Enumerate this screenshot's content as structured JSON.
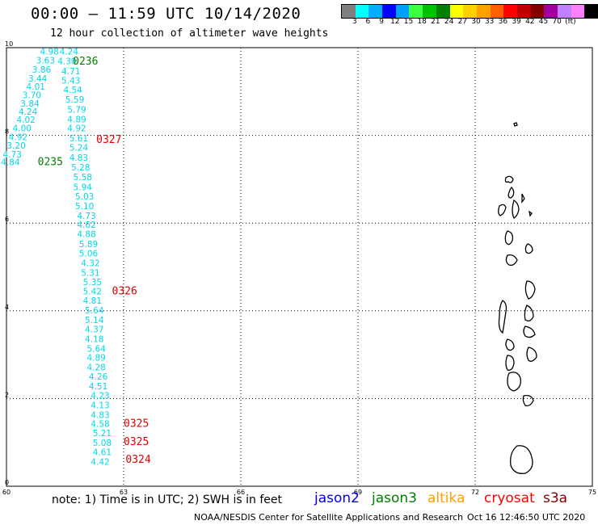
{
  "header": {
    "title": "00:00 – 11:59 UTC 10/14/2020",
    "subtitle": "12 hour collection of altimeter wave heights"
  },
  "colorbar": {
    "colors": [
      "#7f7f7f",
      "#00ffff",
      "#00b0ff",
      "#0000ff",
      "#00a0ff",
      "#40ff40",
      "#00c000",
      "#008000",
      "#ffff00",
      "#ffd000",
      "#ffa000",
      "#ff6000",
      "#ff0000",
      "#c00000",
      "#800000",
      "#a000a0",
      "#c080ff",
      "#ff80ff",
      "#000000"
    ],
    "labels": [
      "3",
      "6",
      "9",
      "12",
      "15",
      "18",
      "21",
      "24",
      "27",
      "30",
      "33",
      "36",
      "39",
      "42",
      "45",
      "70",
      "(ft)"
    ]
  },
  "map": {
    "lon_ticks": [
      "60",
      "63",
      "66",
      "69",
      "72",
      "75"
    ],
    "lat_ticks": [
      "0",
      "2",
      "4",
      "6",
      "8",
      "10"
    ],
    "lon_range": [
      60,
      75
    ],
    "lat_range": [
      0,
      10
    ],
    "grid": "dotted"
  },
  "observations": [
    {
      "v": "4.98",
      "lon": 61.1,
      "lat": 9.84,
      "c": "cyan"
    },
    {
      "v": "4.24",
      "lon": 61.6,
      "lat": 9.84,
      "c": "cyan"
    },
    {
      "v": "3.63",
      "lon": 61.0,
      "lat": 9.64,
      "c": "cyan"
    },
    {
      "v": "4.30",
      "lon": 61.55,
      "lat": 9.62,
      "c": "cyan"
    },
    {
      "v": "3.86",
      "lon": 60.9,
      "lat": 9.43,
      "c": "cyan"
    },
    {
      "v": "4.71",
      "lon": 61.65,
      "lat": 9.39,
      "c": "cyan"
    },
    {
      "v": "3.44",
      "lon": 60.8,
      "lat": 9.23,
      "c": "cyan"
    },
    {
      "v": "5.43",
      "lon": 61.65,
      "lat": 9.18,
      "c": "cyan"
    },
    {
      "v": "4.01",
      "lon": 60.75,
      "lat": 9.04,
      "c": "cyan"
    },
    {
      "v": "3.70",
      "lon": 60.65,
      "lat": 8.85,
      "c": "cyan"
    },
    {
      "v": "4.54",
      "lon": 61.7,
      "lat": 8.97,
      "c": "cyan"
    },
    {
      "v": "3.84",
      "lon": 60.6,
      "lat": 8.66,
      "c": "cyan"
    },
    {
      "v": "5.59",
      "lon": 61.75,
      "lat": 8.75,
      "c": "cyan"
    },
    {
      "v": "4.24",
      "lon": 60.55,
      "lat": 8.47,
      "c": "cyan"
    },
    {
      "v": "5.79",
      "lon": 61.8,
      "lat": 8.52,
      "c": "cyan"
    },
    {
      "v": "4.02",
      "lon": 60.5,
      "lat": 8.29,
      "c": "cyan"
    },
    {
      "v": "4.89",
      "lon": 61.8,
      "lat": 8.3,
      "c": "cyan"
    },
    {
      "v": "4.00",
      "lon": 60.4,
      "lat": 8.09,
      "c": "cyan"
    },
    {
      "v": "4.92",
      "lon": 61.8,
      "lat": 8.09,
      "c": "cyan"
    },
    {
      "v": "4.92",
      "lon": 60.3,
      "lat": 7.89,
      "c": "cyan"
    },
    {
      "v": "5.61",
      "lon": 61.85,
      "lat": 7.86,
      "c": "cyan"
    },
    {
      "v": "3.20",
      "lon": 60.25,
      "lat": 7.7,
      "c": "cyan"
    },
    {
      "v": "5.24",
      "lon": 61.85,
      "lat": 7.65,
      "c": "cyan"
    },
    {
      "v": "4.73",
      "lon": 60.15,
      "lat": 7.5,
      "c": "cyan"
    },
    {
      "v": "4.83",
      "lon": 61.85,
      "lat": 7.42,
      "c": "cyan"
    },
    {
      "v": "4.84",
      "lon": 60.1,
      "lat": 7.32,
      "c": "cyan"
    },
    {
      "v": "5.28",
      "lon": 61.9,
      "lat": 7.2,
      "c": "cyan"
    },
    {
      "v": "5.58",
      "lon": 61.95,
      "lat": 6.98,
      "c": "cyan"
    },
    {
      "v": "5.94",
      "lon": 61.95,
      "lat": 6.75,
      "c": "cyan"
    },
    {
      "v": "5.03",
      "lon": 62.0,
      "lat": 6.54,
      "c": "cyan"
    },
    {
      "v": "5.10",
      "lon": 62.0,
      "lat": 6.32,
      "c": "cyan"
    },
    {
      "v": "4.73",
      "lon": 62.05,
      "lat": 6.1,
      "c": "cyan"
    },
    {
      "v": "4.62",
      "lon": 62.05,
      "lat": 5.89,
      "c": "cyan"
    },
    {
      "v": "4.88",
      "lon": 62.05,
      "lat": 5.68,
      "c": "cyan"
    },
    {
      "v": "5.89",
      "lon": 62.1,
      "lat": 5.45,
      "c": "cyan"
    },
    {
      "v": "5.06",
      "lon": 62.1,
      "lat": 5.24,
      "c": "cyan"
    },
    {
      "v": "4.32",
      "lon": 62.15,
      "lat": 5.02,
      "c": "cyan"
    },
    {
      "v": "5.31",
      "lon": 62.15,
      "lat": 4.8,
      "c": "cyan"
    },
    {
      "v": "5.35",
      "lon": 62.2,
      "lat": 4.59,
      "c": "cyan"
    },
    {
      "v": "5.42",
      "lon": 62.2,
      "lat": 4.37,
      "c": "cyan"
    },
    {
      "v": "4.81",
      "lon": 62.2,
      "lat": 4.16,
      "c": "cyan"
    },
    {
      "v": "5.64",
      "lon": 62.25,
      "lat": 3.94,
      "c": "cyan"
    },
    {
      "v": "5.14",
      "lon": 62.25,
      "lat": 3.72,
      "c": "cyan"
    },
    {
      "v": "4.37",
      "lon": 62.25,
      "lat": 3.51,
      "c": "cyan"
    },
    {
      "v": "4.18",
      "lon": 62.25,
      "lat": 3.29,
      "c": "cyan"
    },
    {
      "v": "5.64",
      "lon": 62.3,
      "lat": 3.07,
      "c": "cyan"
    },
    {
      "v": "4.89",
      "lon": 62.3,
      "lat": 2.86,
      "c": "cyan"
    },
    {
      "v": "4.28",
      "lon": 62.3,
      "lat": 2.64,
      "c": "cyan"
    },
    {
      "v": "4.26",
      "lon": 62.35,
      "lat": 2.43,
      "c": "cyan"
    },
    {
      "v": "4.51",
      "lon": 62.35,
      "lat": 2.21,
      "c": "cyan"
    },
    {
      "v": "4.23",
      "lon": 62.4,
      "lat": 2.0,
      "c": "cyan"
    },
    {
      "v": "4.13",
      "lon": 62.4,
      "lat": 1.78,
      "c": "cyan"
    },
    {
      "v": "4.83",
      "lon": 62.4,
      "lat": 1.56,
      "c": "cyan"
    },
    {
      "v": "4.58",
      "lon": 62.4,
      "lat": 1.35,
      "c": "cyan"
    },
    {
      "v": "5.21",
      "lon": 62.45,
      "lat": 1.14,
      "c": "cyan"
    },
    {
      "v": "5.08",
      "lon": 62.45,
      "lat": 0.92,
      "c": "cyan"
    },
    {
      "v": "4.61",
      "lon": 62.45,
      "lat": 0.71,
      "c": "cyan"
    },
    {
      "v": "4.42",
      "lon": 62.4,
      "lat": 0.49,
      "c": "cyan"
    }
  ],
  "pass_labels": [
    {
      "text": "0236",
      "lon": 61.7,
      "lat": 9.61,
      "c": "green"
    },
    {
      "text": "0327",
      "lon": 62.3,
      "lat": 7.83,
      "c": "red"
    },
    {
      "text": "0235",
      "lon": 60.8,
      "lat": 7.32,
      "c": "green"
    },
    {
      "text": "0326",
      "lon": 62.7,
      "lat": 4.37,
      "c": "red"
    },
    {
      "text": "0325",
      "lon": 63.0,
      "lat": 1.35,
      "c": "red"
    },
    {
      "text": "0325",
      "lon": 63.0,
      "lat": 0.94,
      "c": "red"
    },
    {
      "text": "0324",
      "lon": 63.05,
      "lat": 0.53,
      "c": "red"
    }
  ],
  "footer": {
    "note": "note: 1) Time is in UTC; 2) SWH is in feet",
    "credit": "NOAA/NESDIS Center for Satellite Applications and Research",
    "timestamp": "Oct 16 12:46:50 UTC 2020"
  },
  "legend": [
    {
      "label": "jason2",
      "color": "#0000ff"
    },
    {
      "label": "jason3",
      "color": "#008000"
    },
    {
      "label": "altika",
      "color": "#ffa000"
    },
    {
      "label": "cryosat",
      "color": "#ff0000"
    },
    {
      "label": "s3a",
      "color": "#800000"
    }
  ]
}
